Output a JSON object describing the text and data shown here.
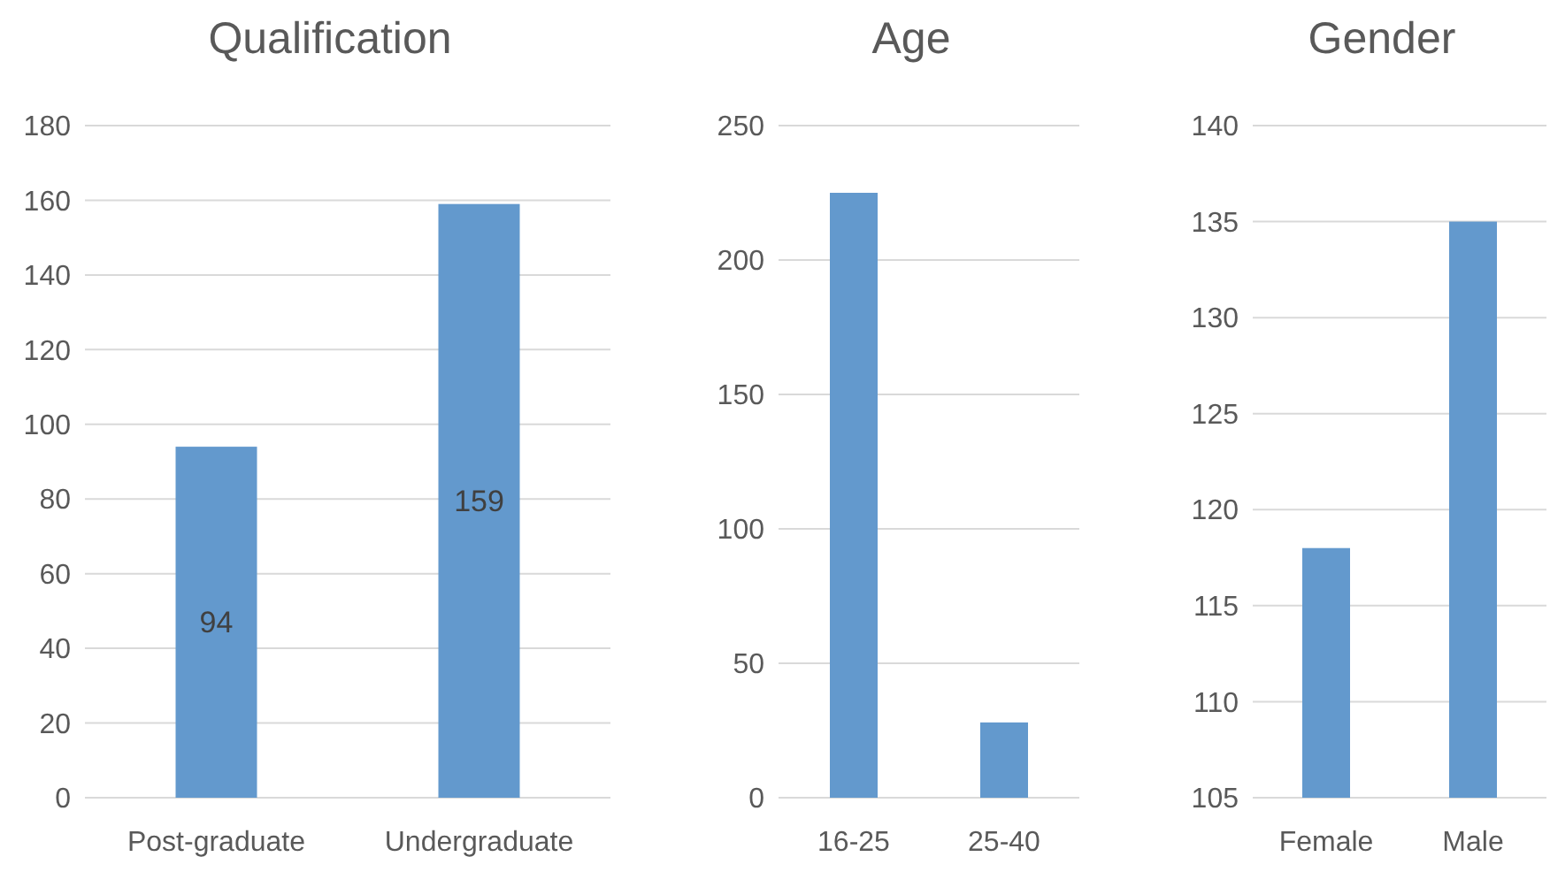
{
  "chart_data": [
    {
      "type": "bar",
      "title": "Qualification",
      "categories": [
        "Post-graduate",
        "Undergraduate"
      ],
      "values": [
        94,
        159
      ],
      "color": "#6399cd",
      "ylim": [
        0,
        180
      ],
      "yticks": [
        0,
        20,
        40,
        60,
        80,
        100,
        120,
        140,
        160,
        180
      ],
      "grid": "y",
      "data_labels": true
    },
    {
      "type": "bar",
      "title": "Age",
      "categories": [
        "16-25",
        "25-40"
      ],
      "values": [
        225,
        28
      ],
      "color": "#6399cd",
      "ylim": [
        0,
        250
      ],
      "yticks": [
        0,
        50,
        100,
        150,
        200,
        250
      ],
      "grid": "y"
    },
    {
      "type": "bar",
      "title": "Gender",
      "categories": [
        "Female",
        "Male"
      ],
      "values": [
        118,
        135
      ],
      "color": "#6399cd",
      "ylim": [
        105,
        140
      ],
      "yticks": [
        105,
        110,
        115,
        120,
        125,
        130,
        135,
        140
      ],
      "grid": "y"
    }
  ]
}
